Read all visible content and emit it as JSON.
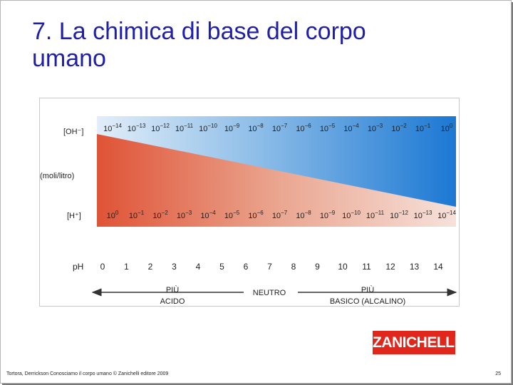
{
  "slide": {
    "title_line1": "7. La chimica di base del corpo",
    "title_line2": "umano",
    "footer": "Tortora, Derrickson Conosciamo il corpo umano © Zanichelli editore 2009",
    "page_number": "25",
    "logo_text": "ZANICHELLI"
  },
  "figure": {
    "label_oh": "[OH⁻]",
    "label_units": "(moli/litro)",
    "label_h": "[H⁺]",
    "label_ph": "pH",
    "oh_exponents": [
      "−14",
      "−13",
      "−12",
      "−11",
      "−10",
      "−9",
      "−8",
      "−7",
      "−6",
      "−5",
      "−4",
      "−3",
      "−2",
      "−1",
      "0"
    ],
    "h_exponents": [
      "0",
      "−1",
      "−2",
      "−3",
      "−4",
      "−5",
      "−6",
      "−7",
      "−8",
      "−9",
      "−10",
      "−11",
      "−12",
      "−13",
      "−14"
    ],
    "base": "10",
    "ph_values": [
      "0",
      "1",
      "2",
      "3",
      "4",
      "5",
      "6",
      "7",
      "8",
      "9",
      "10",
      "11",
      "12",
      "13",
      "14"
    ],
    "acid_line1": "PIÙ",
    "acid_line2": "ACIDO",
    "neutral": "NEUTRO",
    "basic_line1": "PIÙ",
    "basic_line2": "BASICO (ALCALINO)",
    "colors": {
      "blue_strong": "#1a78d4",
      "blue_light": "#d9ebf8",
      "red_strong": "#e0553a",
      "red_light": "#f4dcd4"
    }
  }
}
